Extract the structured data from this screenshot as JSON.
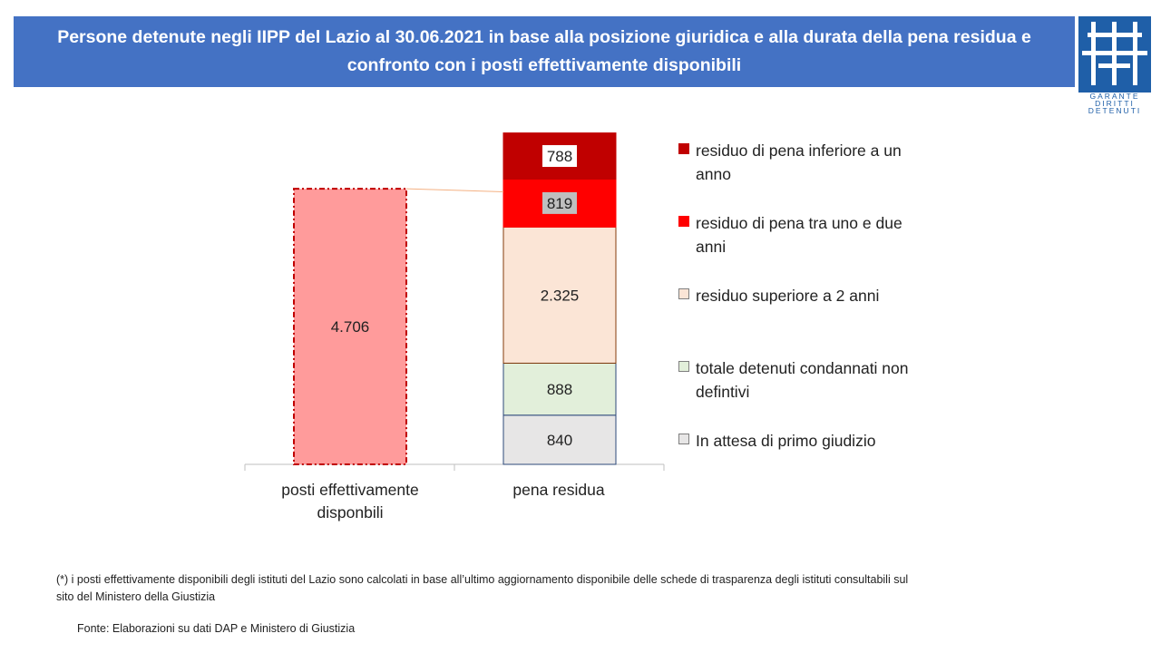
{
  "title": "Persone detenute negli IIPP del Lazio al 30.06.2021  in base alla posizione giuridica e alla durata della pena residua e confronto con i posti effettivamente disponibili",
  "logo": {
    "text_lines": [
      "GARANTE",
      "DIRITTI",
      "DETENUTI"
    ],
    "color": "#1f5fa8"
  },
  "chart_data": {
    "type": "bar",
    "stacked": true,
    "categories": [
      "posti effettivamente disponbili",
      "pena residua"
    ],
    "value_labels": {
      "posti": "4.706",
      "In attesa di primo giudizio": "840",
      "totale detenuti condannati non defintivi": "888",
      "residuo superiore a 2 anni": "2.325",
      "residuo di pena tra uno e due anni": "819",
      "residuo di pena inferiore a un anno": "788"
    },
    "series": [
      {
        "name": "posti",
        "values": [
          4706,
          null
        ],
        "color": "#ff9b9b",
        "border": "#c00000"
      },
      {
        "name": "In attesa di primo giudizio",
        "values": [
          null,
          840
        ],
        "color": "#e7e6e6",
        "border": "#2e4a7a"
      },
      {
        "name": "totale detenuti condannati non defintivi",
        "values": [
          null,
          888
        ],
        "color": "#e2efda",
        "border": "#2e4a7a"
      },
      {
        "name": "residuo superiore a 2 anni",
        "values": [
          null,
          2325
        ],
        "color": "#fbe5d6",
        "border": "#843c0c"
      },
      {
        "name": "residuo di pena tra uno e due anni",
        "values": [
          null,
          819
        ],
        "color": "#ff0000",
        "border": "#ff0000"
      },
      {
        "name": "residuo di pena inferiore a un anno",
        "values": [
          null,
          788
        ],
        "color": "#c00000",
        "border": "#c00000"
      }
    ],
    "legend": [
      {
        "text": "residuo di pena inferiore a un anno",
        "color": "#c00000"
      },
      {
        "text": "residuo di pena tra uno e due anni",
        "color": "#ff0000"
      },
      {
        "text": "residuo superiore a 2 anni",
        "color": "#fbe5d6"
      },
      {
        "text": "totale detenuti condannati non defintivi",
        "color": "#e2efda"
      },
      {
        "text": "In attesa di primo giudizio",
        "color": "#e7e6e6"
      }
    ],
    "legend_position": "right",
    "grid": false
  },
  "footnote": "(*) i posti effettivamente disponibili degli istituti del Lazio sono calcolati in base all’ultimo aggiornamento disponibile delle schede di trasparenza degli istituti consultabili sul sito del Ministero della Giustizia",
  "source": "Fonte:  Elaborazioni su dati DAP e Ministero di Giustizia"
}
